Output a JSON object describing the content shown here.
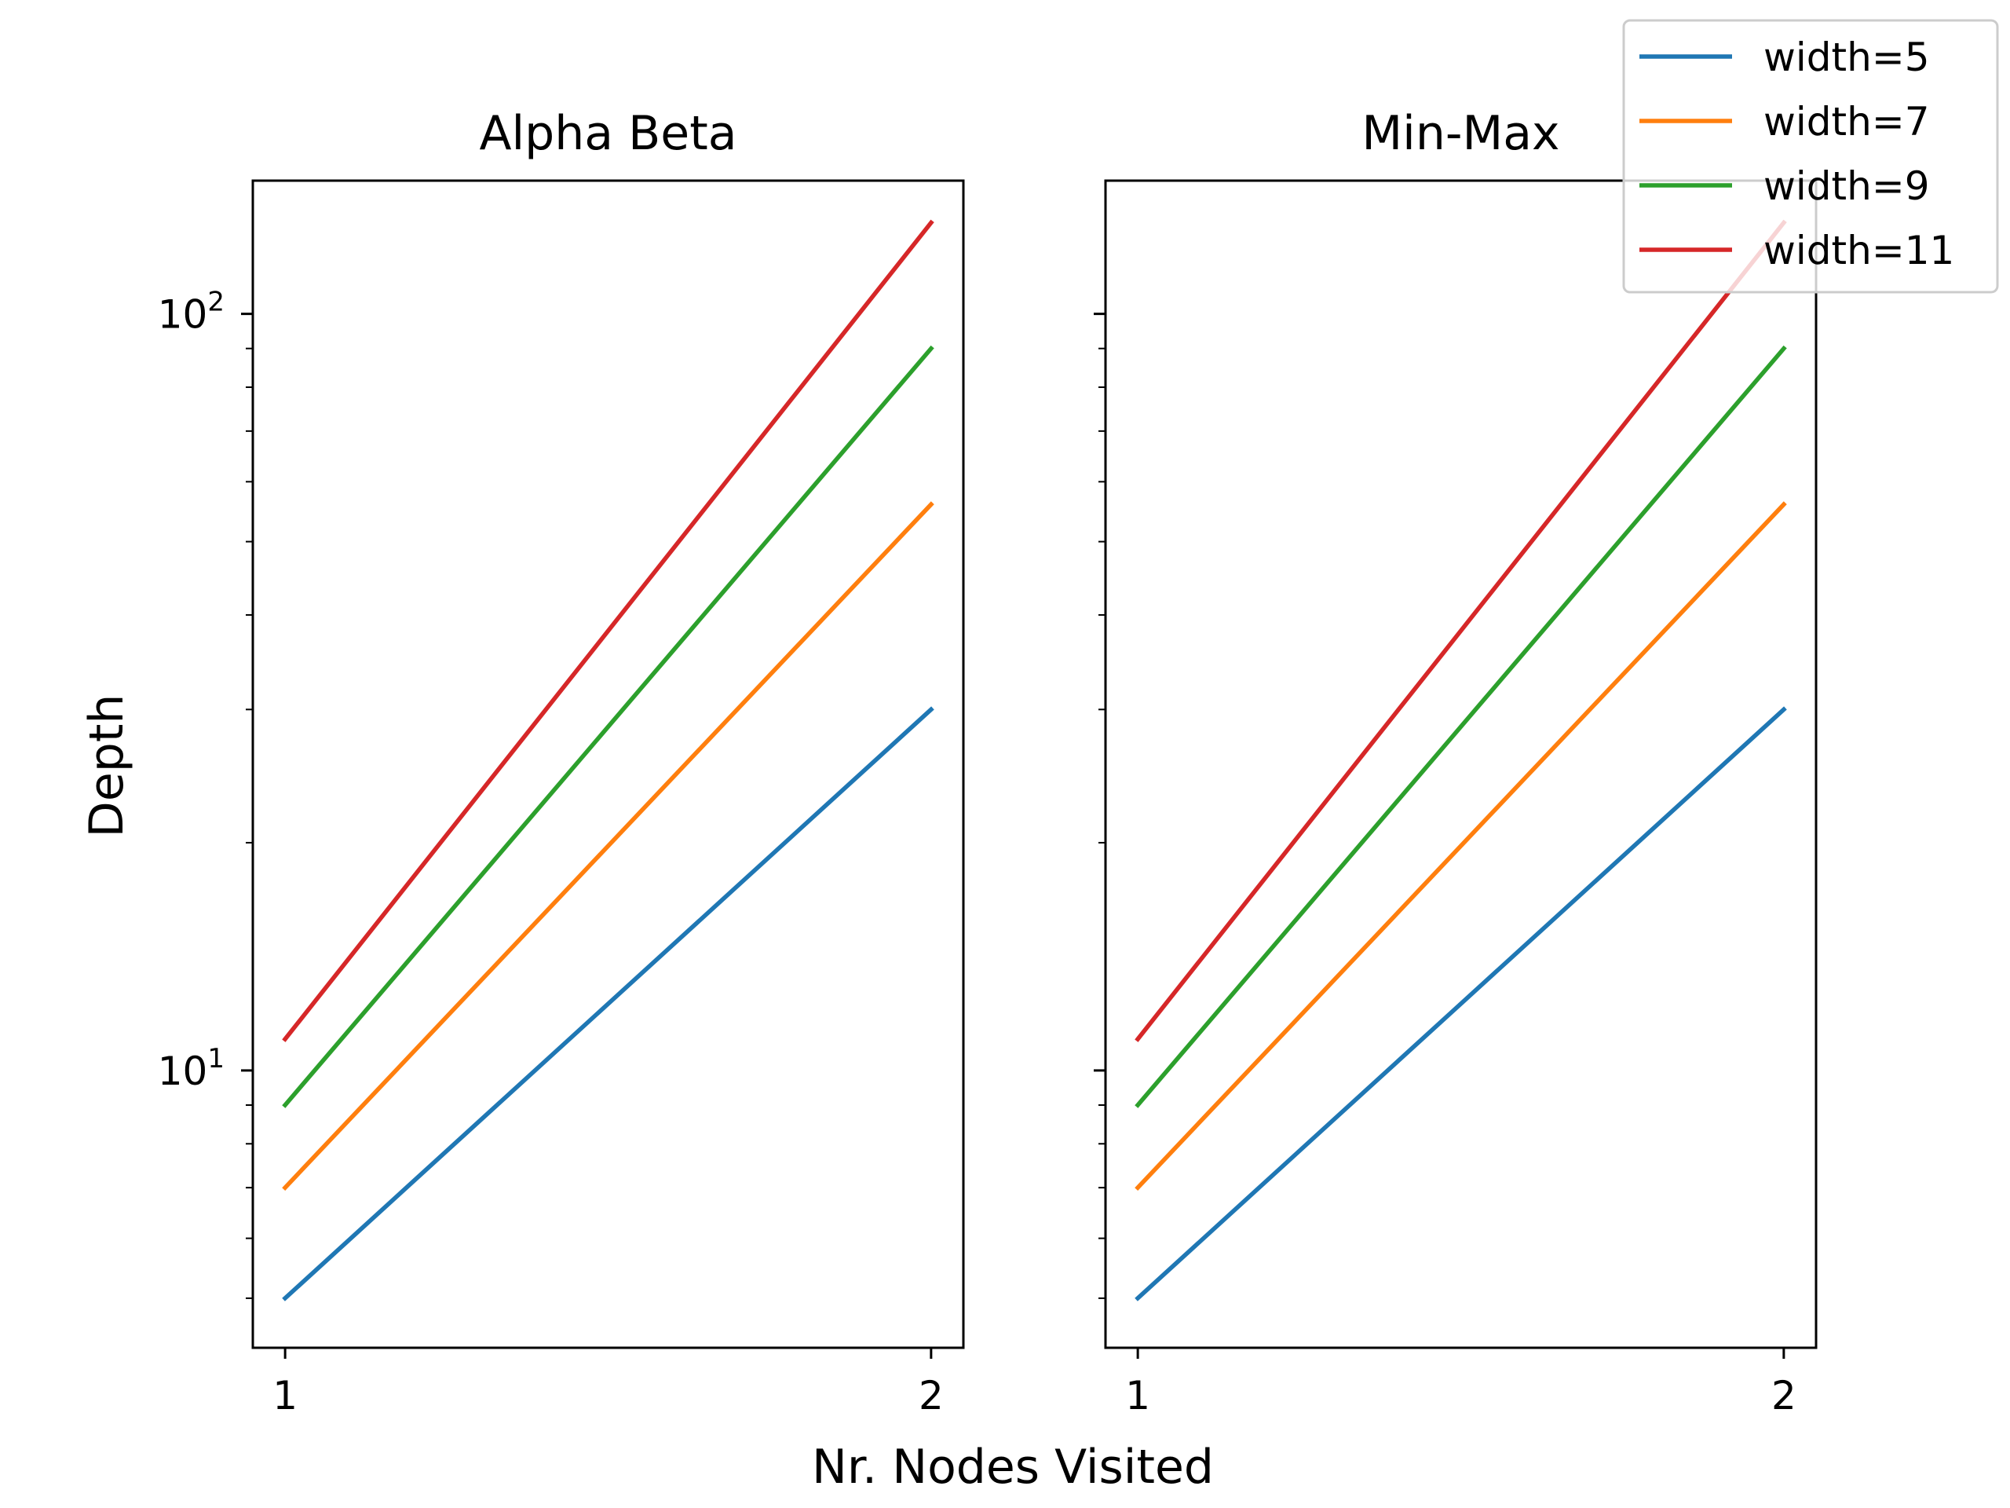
{
  "figure": {
    "xlabel": "Nr. Nodes Visited",
    "ylabel": "Depth"
  },
  "legend": {
    "placement": "upper-right",
    "entries": [
      {
        "label": "width=5",
        "color": "#1f77b4"
      },
      {
        "label": "width=7",
        "color": "#ff7f0e"
      },
      {
        "label": "width=9",
        "color": "#2ca02c"
      },
      {
        "label": "width=11",
        "color": "#d62728"
      }
    ]
  },
  "chart_data": [
    {
      "type": "line",
      "title": "Alpha Beta",
      "xlabel": "Nr. Nodes Visited",
      "ylabel": "Depth",
      "yscale": "log",
      "x": [
        1,
        2
      ],
      "xticks": [
        "1",
        "2"
      ],
      "yticks": [
        {
          "value": 10,
          "base": "10",
          "exp": "1"
        },
        {
          "value": 100,
          "base": "10",
          "exp": "2"
        }
      ],
      "xlim": [
        0.95,
        2.05
      ],
      "ylim": [
        4.3,
        150
      ],
      "grid": false,
      "series": [
        {
          "name": "width=5",
          "color": "#1f77b4",
          "values": [
            5,
            30
          ]
        },
        {
          "name": "width=7",
          "color": "#ff7f0e",
          "values": [
            7,
            56
          ]
        },
        {
          "name": "width=9",
          "color": "#2ca02c",
          "values": [
            9,
            90
          ]
        },
        {
          "name": "width=11",
          "color": "#d62728",
          "values": [
            11,
            132
          ]
        }
      ]
    },
    {
      "type": "line",
      "title": "Min-Max",
      "xlabel": "Nr. Nodes Visited",
      "ylabel": "Depth",
      "yscale": "log",
      "x": [
        1,
        2
      ],
      "xticks": [
        "1",
        "2"
      ],
      "yticks": [
        {
          "value": 10,
          "base": "",
          "exp": ""
        },
        {
          "value": 100,
          "base": "",
          "exp": ""
        }
      ],
      "xlim": [
        0.95,
        2.05
      ],
      "ylim": [
        4.3,
        150
      ],
      "grid": false,
      "series": [
        {
          "name": "width=5",
          "color": "#1f77b4",
          "values": [
            5,
            30
          ]
        },
        {
          "name": "width=7",
          "color": "#ff7f0e",
          "values": [
            7,
            56
          ]
        },
        {
          "name": "width=9",
          "color": "#2ca02c",
          "values": [
            9,
            90
          ]
        },
        {
          "name": "width=11",
          "color": "#d62728",
          "values": [
            11,
            132
          ]
        }
      ]
    }
  ]
}
